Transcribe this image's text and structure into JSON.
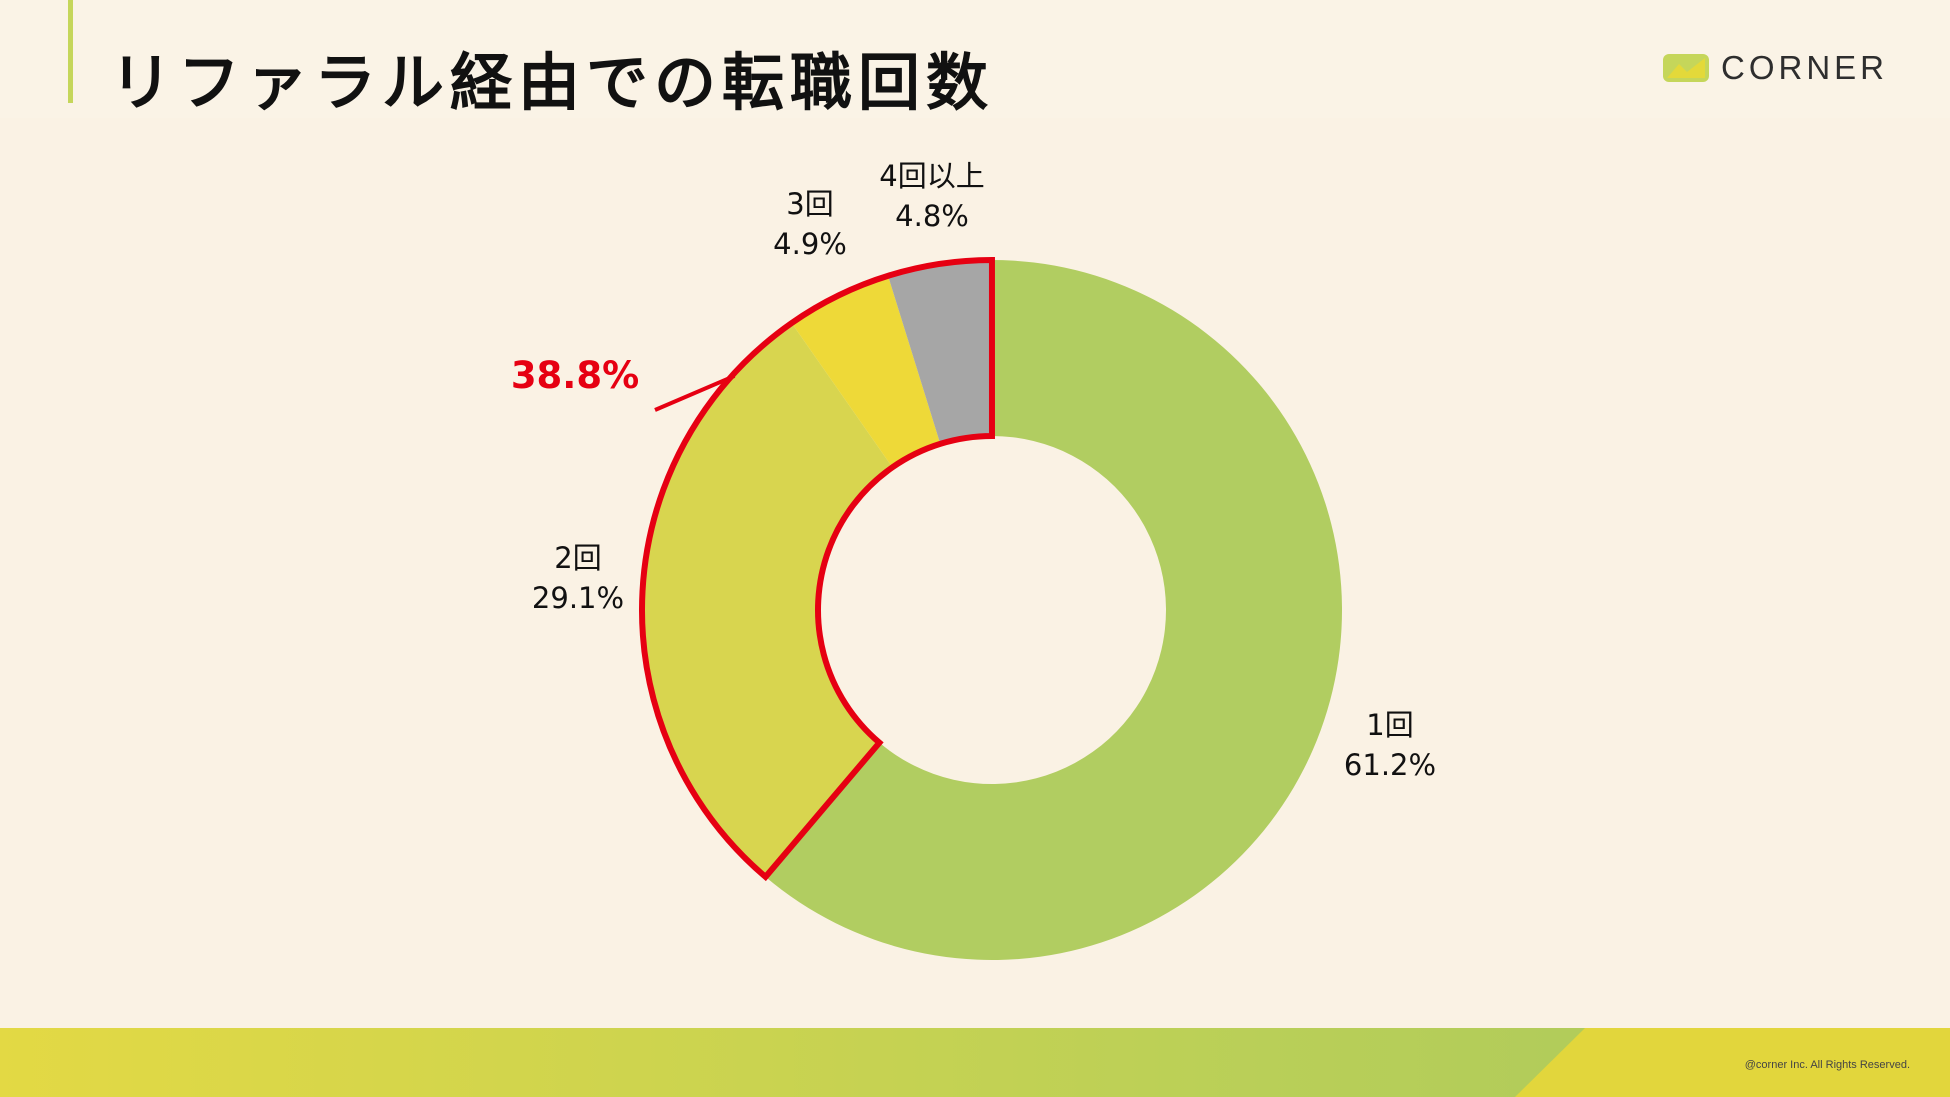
{
  "header": {
    "title": "リファラル経由での転職回数",
    "logo_text": "CORNER"
  },
  "chart_data": {
    "type": "pie",
    "variant": "donut",
    "title": "リファラル経由での転職回数",
    "slices": [
      {
        "label": "1回",
        "value": 61.2,
        "display": "61.2%",
        "color": "#b1cd61"
      },
      {
        "label": "2回",
        "value": 29.1,
        "display": "29.1%",
        "color": "#d8d54f"
      },
      {
        "label": "3回",
        "value": 4.9,
        "display": "4.9%",
        "color": "#eed938"
      },
      {
        "label": "4回以上",
        "value": 4.8,
        "display": "4.8%",
        "color": "#a6a6a6"
      }
    ],
    "highlight": {
      "text": "38.8%",
      "color": "#e60012",
      "covers": [
        "2回",
        "3回",
        "4回以上"
      ]
    }
  },
  "footer": {
    "copyright": "@corner Inc. All Rights Reserved."
  },
  "colors": {
    "background": "#faf2e4",
    "accent": "#c5d65a",
    "highlight": "#e60012"
  }
}
